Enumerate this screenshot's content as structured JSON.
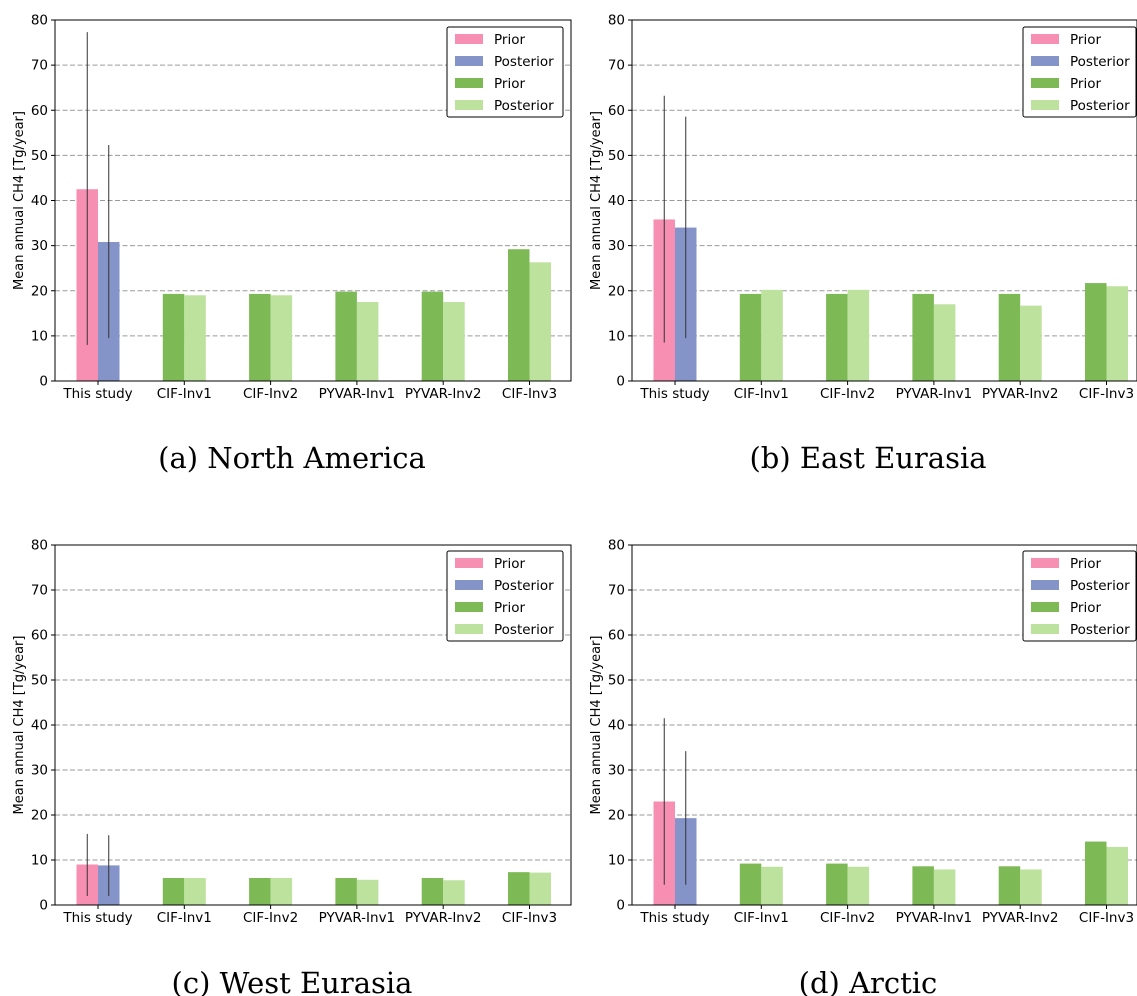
{
  "figure": {
    "captions": [
      "(a) North America",
      "(b) East Eurasia",
      "(c) West Eurasia",
      "(d) Arctic"
    ]
  },
  "colors": {
    "this_study_prior": "#f78fb3",
    "this_study_posterior": "#8493c8",
    "inversion_prior": "#7db954",
    "inversion_posterior": "#bce29e",
    "grid": "#9a9a9a",
    "errorbar": "#333333"
  },
  "chart_data": [
    {
      "type": "bar",
      "title": "",
      "ylabel": "Mean annual CH4 [Tg/year]",
      "ylim": [
        0,
        80
      ],
      "yticks": [
        0,
        10,
        20,
        30,
        40,
        50,
        60,
        70,
        80
      ],
      "grid": "horizontal dashed",
      "legend_position": "top-right",
      "categories": [
        "This study",
        "CIF-Inv1",
        "CIF-Inv2",
        "PYVAR-Inv1",
        "PYVAR-Inv2",
        "CIF-Inv3"
      ],
      "series": [
        {
          "name": "Prior",
          "values": [
            42.5,
            null,
            null,
            null,
            null,
            null
          ],
          "error_range": [
            [
              8,
              77.3
            ]
          ]
        },
        {
          "name": "Posterior",
          "values": [
            30.8,
            null,
            null,
            null,
            null,
            null
          ],
          "error_range": [
            [
              9.5,
              52.3
            ]
          ]
        },
        {
          "name": "Prior",
          "values": [
            null,
            19.3,
            19.3,
            19.8,
            19.8,
            29.2
          ]
        },
        {
          "name": "Posterior",
          "values": [
            null,
            19.0,
            19.0,
            17.5,
            17.5,
            26.3
          ]
        }
      ]
    },
    {
      "type": "bar",
      "title": "",
      "ylabel": "Mean annual CH4 [Tg/year]",
      "ylim": [
        0,
        80
      ],
      "yticks": [
        0,
        10,
        20,
        30,
        40,
        50,
        60,
        70,
        80
      ],
      "grid": "horizontal dashed",
      "legend_position": "top-right",
      "categories": [
        "This study",
        "CIF-Inv1",
        "CIF-Inv2",
        "PYVAR-Inv1",
        "PYVAR-Inv2",
        "CIF-Inv3"
      ],
      "series": [
        {
          "name": "Prior",
          "values": [
            35.8,
            null,
            null,
            null,
            null,
            null
          ],
          "error_range": [
            [
              8.5,
              63.2
            ]
          ]
        },
        {
          "name": "Posterior",
          "values": [
            34.0,
            null,
            null,
            null,
            null,
            null
          ],
          "error_range": [
            [
              9.5,
              58.6
            ]
          ]
        },
        {
          "name": "Prior",
          "values": [
            null,
            19.3,
            19.3,
            19.3,
            19.3,
            21.7
          ]
        },
        {
          "name": "Posterior",
          "values": [
            null,
            20.2,
            20.2,
            17.0,
            16.7,
            21.0
          ]
        }
      ]
    },
    {
      "type": "bar",
      "title": "",
      "ylabel": "Mean annual CH4 [Tg/year]",
      "ylim": [
        0,
        80
      ],
      "yticks": [
        0,
        10,
        20,
        30,
        40,
        50,
        60,
        70,
        80
      ],
      "grid": "horizontal dashed",
      "legend_position": "top-right",
      "categories": [
        "This study",
        "CIF-Inv1",
        "CIF-Inv2",
        "PYVAR-Inv1",
        "PYVAR-Inv2",
        "CIF-Inv3"
      ],
      "series": [
        {
          "name": "Prior",
          "values": [
            9.0,
            null,
            null,
            null,
            null,
            null
          ],
          "error_range": [
            [
              2,
              15.8
            ]
          ]
        },
        {
          "name": "Posterior",
          "values": [
            8.8,
            null,
            null,
            null,
            null,
            null
          ],
          "error_range": [
            [
              2,
              15.5
            ]
          ]
        },
        {
          "name": "Prior",
          "values": [
            null,
            6.0,
            6.0,
            6.0,
            6.0,
            7.3
          ]
        },
        {
          "name": "Posterior",
          "values": [
            null,
            6.0,
            6.0,
            5.6,
            5.5,
            7.2
          ]
        }
      ]
    },
    {
      "type": "bar",
      "title": "",
      "ylabel": "Mean annual CH4 [Tg/year]",
      "ylim": [
        0,
        80
      ],
      "yticks": [
        0,
        10,
        20,
        30,
        40,
        50,
        60,
        70,
        80
      ],
      "grid": "horizontal dashed",
      "legend_position": "top-right",
      "categories": [
        "This study",
        "CIF-Inv1",
        "CIF-Inv2",
        "PYVAR-Inv1",
        "PYVAR-Inv2",
        "CIF-Inv3"
      ],
      "series": [
        {
          "name": "Prior",
          "values": [
            23.0,
            null,
            null,
            null,
            null,
            null
          ],
          "error_range": [
            [
              4.5,
              41.5
            ]
          ]
        },
        {
          "name": "Posterior",
          "values": [
            19.3,
            null,
            null,
            null,
            null,
            null
          ],
          "error_range": [
            [
              4.5,
              34.2
            ]
          ]
        },
        {
          "name": "Prior",
          "values": [
            null,
            9.2,
            9.2,
            8.6,
            8.6,
            14.1
          ]
        },
        {
          "name": "Posterior",
          "values": [
            null,
            8.5,
            8.5,
            7.9,
            7.9,
            12.9
          ]
        }
      ]
    }
  ]
}
